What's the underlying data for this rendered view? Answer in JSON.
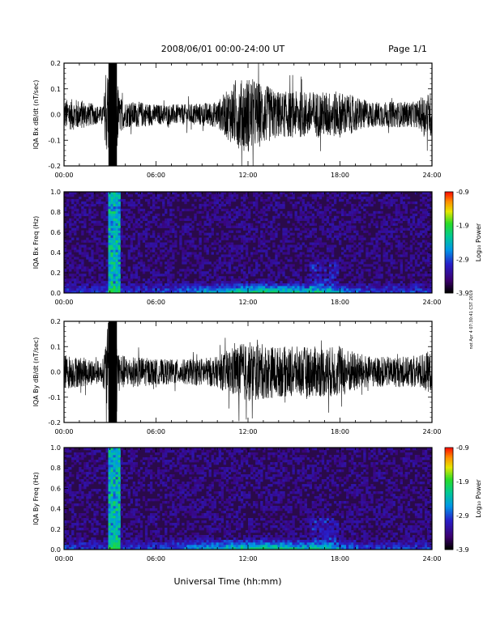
{
  "header": {
    "title": "2008/06/01  00:00-24:00 UT",
    "page": "Page 1/1"
  },
  "footer": {
    "xlabel": "Universal Time (hh:mm)",
    "side_note": "not Apr 4 07:30:41 CST 2019"
  },
  "colors": {
    "background": "#ffffff",
    "trace": "#000000",
    "spectrogram_base": "#2a0a4a"
  },
  "chart_data": [
    {
      "type": "line",
      "panel": "IQA Bx dB/dt",
      "ylabel": "IQA Bx dB/dt (nT/sec)",
      "xlabel": "",
      "xlim": [
        0,
        24
      ],
      "ylim": [
        -0.2,
        0.2
      ],
      "xticks": [
        "00:00",
        "06:00",
        "12:00",
        "18:00",
        "24:00"
      ],
      "yticks": [
        "-0.2",
        "-0.1",
        "0.0",
        "0.1",
        "0.2"
      ],
      "x_tick_values": [
        0,
        6,
        12,
        18,
        24
      ],
      "y_tick_values": [
        -0.2,
        -0.1,
        0.0,
        0.1,
        0.2
      ],
      "envelope": {
        "hours": [
          0,
          1,
          2,
          2.5,
          3.0,
          3.3,
          3.6,
          4,
          5,
          6,
          8,
          10,
          11,
          12,
          13,
          14,
          16,
          18,
          20,
          22,
          23,
          23.5,
          24
        ],
        "amplitude": [
          0.06,
          0.06,
          0.04,
          0.03,
          0.25,
          0.25,
          0.07,
          0.05,
          0.05,
          0.04,
          0.04,
          0.05,
          0.12,
          0.15,
          0.12,
          0.09,
          0.09,
          0.09,
          0.05,
          0.05,
          0.05,
          0.08,
          0.09
        ]
      }
    },
    {
      "type": "heatmap",
      "panel": "IQA Bx Freq",
      "ylabel": "IQA Bx Freq (Hz)",
      "xlabel": "",
      "xlim": [
        0,
        24
      ],
      "ylim": [
        0.0,
        1.0
      ],
      "xticks": [
        "00:00",
        "06:00",
        "12:00",
        "18:00",
        "24:00"
      ],
      "yticks": [
        "0.0",
        "0.2",
        "0.4",
        "0.6",
        "0.8",
        "1.0"
      ],
      "x_tick_values": [
        0,
        6,
        12,
        18,
        24
      ],
      "y_tick_values": [
        0.0,
        0.2,
        0.4,
        0.6,
        0.8,
        1.0
      ],
      "colorbar": {
        "label": "Log₁₀ Power",
        "range": [
          -3.9,
          -0.9
        ],
        "ticks": [
          "-0.9",
          "-1.9",
          "-2.9",
          "-3.9"
        ],
        "tick_values": [
          -0.9,
          -1.9,
          -2.9,
          -3.9
        ]
      }
    },
    {
      "type": "line",
      "panel": "IQA By dB/dt",
      "ylabel": "IQA By dB/dt (nT/sec)",
      "xlabel": "",
      "xlim": [
        0,
        24
      ],
      "ylim": [
        -0.2,
        0.2
      ],
      "xticks": [
        "00:00",
        "06:00",
        "12:00",
        "18:00",
        "24:00"
      ],
      "yticks": [
        "-0.2",
        "-0.1",
        "0.0",
        "0.1",
        "0.2"
      ],
      "x_tick_values": [
        0,
        6,
        12,
        18,
        24
      ],
      "y_tick_values": [
        -0.2,
        -0.1,
        0.0,
        0.1,
        0.2
      ],
      "envelope": {
        "hours": [
          0,
          1,
          2,
          2.5,
          3.0,
          3.3,
          3.6,
          4,
          5,
          6,
          8,
          10,
          11,
          12,
          13,
          14,
          16,
          18,
          20,
          22,
          23,
          23.5,
          24
        ],
        "amplitude": [
          0.07,
          0.06,
          0.05,
          0.04,
          0.25,
          0.25,
          0.08,
          0.06,
          0.06,
          0.05,
          0.05,
          0.06,
          0.1,
          0.12,
          0.11,
          0.1,
          0.1,
          0.1,
          0.06,
          0.06,
          0.06,
          0.08,
          0.08
        ]
      }
    },
    {
      "type": "heatmap",
      "panel": "IQA By Freq",
      "ylabel": "IQA By Freq (Hz)",
      "xlabel": "Universal Time (hh:mm)",
      "xlim": [
        0,
        24
      ],
      "ylim": [
        0.0,
        1.0
      ],
      "xticks": [
        "00:00",
        "06:00",
        "12:00",
        "18:00",
        "24:00"
      ],
      "yticks": [
        "0.0",
        "0.2",
        "0.4",
        "0.6",
        "0.8",
        "1.0"
      ],
      "x_tick_values": [
        0,
        6,
        12,
        18,
        24
      ],
      "y_tick_values": [
        0.0,
        0.2,
        0.4,
        0.6,
        0.8,
        1.0
      ],
      "colorbar": {
        "label": "Log₁₀ Power",
        "range": [
          -3.9,
          -0.9
        ],
        "ticks": [
          "-0.9",
          "-1.9",
          "-2.9",
          "-3.9"
        ],
        "tick_values": [
          -0.9,
          -1.9,
          -2.9,
          -3.9
        ]
      }
    }
  ]
}
